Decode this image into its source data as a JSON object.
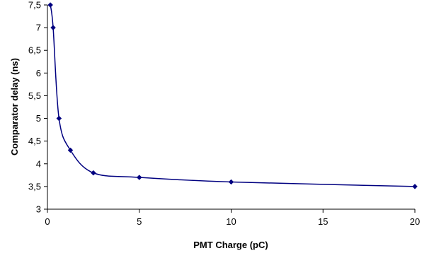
{
  "chart_data": {
    "type": "scatter",
    "title": "",
    "xlabel": "PMT Charge (pC)",
    "ylabel": "Comparator delay (ns)",
    "xlim": [
      0,
      20
    ],
    "ylim": [
      3,
      7.5
    ],
    "x_ticks": [
      "0",
      "5",
      "10",
      "15",
      "20"
    ],
    "y_ticks": [
      "3",
      "3,5",
      "4",
      "4,5",
      "5",
      "5,5",
      "6",
      "6,5",
      "7",
      "7,5"
    ],
    "grid": false,
    "legend": "none",
    "series": [
      {
        "color": "#000080",
        "line": "smoothed",
        "marker": "diamond",
        "x": [
          0.16,
          0.31,
          0.63,
          1.25,
          2.5,
          5,
          10,
          20
        ],
        "y": [
          7.5,
          7.0,
          5.0,
          4.3,
          3.8,
          3.7,
          3.6,
          3.5
        ]
      }
    ]
  }
}
